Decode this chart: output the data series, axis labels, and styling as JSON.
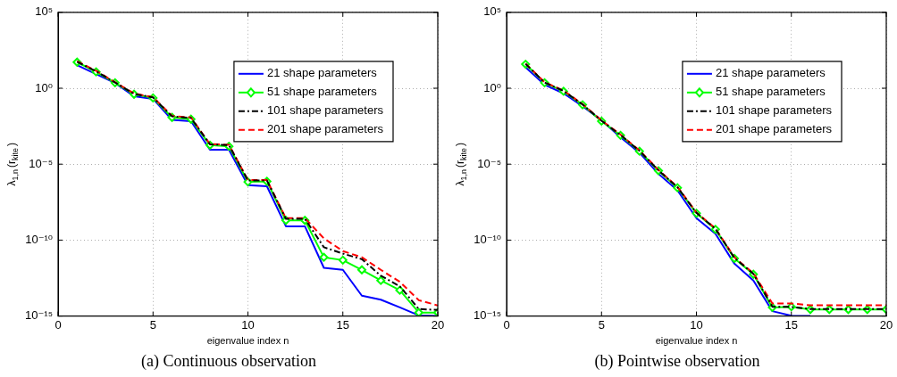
{
  "chart_data": [
    {
      "type": "line",
      "title": "(a) Continuous observation",
      "xlabel": "eigenvalue index n",
      "ylabel": "λ$_{1,n}$(r$_{kite}$)",
      "x": [
        1,
        2,
        3,
        4,
        5,
        6,
        7,
        8,
        9,
        10,
        11,
        12,
        13,
        14,
        15,
        16,
        17,
        18,
        19,
        20
      ],
      "xlim": [
        0,
        20
      ],
      "xticks": [
        0,
        5,
        10,
        15,
        20
      ],
      "log": "y",
      "ylim": [
        1e-15,
        100000.0
      ],
      "yticks": [
        {
          "value": 100000.0,
          "label": "10⁵"
        },
        {
          "value": 1,
          "label": "10⁰"
        },
        {
          "value": 1e-05,
          "label": "10⁻⁵"
        },
        {
          "value": 1e-10,
          "label": "10⁻¹⁰"
        },
        {
          "value": 1e-15,
          "label": "10⁻¹⁵"
        }
      ],
      "grid": true,
      "legend": "top right",
      "series": [
        {
          "name": "21 shape parameters",
          "color": "#0000ff",
          "line_style": "solid",
          "marker": "none",
          "values": [
            33,
            8.5,
            2.2,
            0.3,
            0.2,
            0.0083,
            0.0068,
            8.9e-05,
            8.9e-05,
            4.2e-07,
            3.5e-07,
            8.1e-10,
            8.1e-10,
            1.5e-12,
            1.1e-12,
            2.2e-14,
            1.2e-14,
            3.7e-15,
            1.1e-15,
            1e-15
          ]
        },
        {
          "name": "51 shape parameters",
          "color": "#00ff00",
          "line_style": "solid",
          "marker": "diamond",
          "values": [
            52,
            12,
            2.3,
            0.4,
            0.23,
            0.012,
            0.0091,
            0.00018,
            0.00015,
            6.8e-07,
            7.4e-07,
            2e-09,
            2e-09,
            7.4e-12,
            4.8e-12,
            1.1e-12,
            2.2e-13,
            5e-14,
            1.7e-15,
            1.7e-15
          ]
        },
        {
          "name": "101 shape parameters",
          "color": "#000000",
          "line_style": "dashdot",
          "marker": "none",
          "values": [
            55,
            13,
            2.4,
            0.42,
            0.25,
            0.014,
            0.011,
            0.0002,
            0.00018,
            8.5e-07,
            8.5e-07,
            2.5e-09,
            2.5e-09,
            3.4e-11,
            1.3e-11,
            5.5e-12,
            4.5e-13,
            9.1e-14,
            2.9e-15,
            2.5e-15
          ]
        },
        {
          "name": "201 shape parameters",
          "color": "#ff0000",
          "line_style": "dashed",
          "marker": "none",
          "values": [
            60,
            14,
            2.5,
            0.45,
            0.26,
            0.015,
            0.012,
            0.00021,
            0.00019,
            9e-07,
            9e-07,
            2.8e-09,
            2.8e-09,
            1.3e-10,
            1.9e-11,
            7.4e-12,
            1.1e-12,
            1.8e-13,
            1.1e-14,
            5e-15
          ]
        }
      ]
    },
    {
      "type": "line",
      "title": "(b) Pointwise observation",
      "xlabel": "eigenvalue index n",
      "ylabel": "λ$_{1,n}$(r$_{kite}$)",
      "x": [
        1,
        2,
        3,
        4,
        5,
        6,
        7,
        8,
        9,
        10,
        11,
        12,
        13,
        14,
        15,
        16,
        17,
        18,
        19,
        20
      ],
      "xlim": [
        0,
        20
      ],
      "xticks": [
        0,
        5,
        10,
        15,
        20
      ],
      "log": "y",
      "ylim": [
        1e-15,
        100000.0
      ],
      "yticks": [
        {
          "value": 100000.0,
          "label": "10⁵"
        },
        {
          "value": 1,
          "label": "10⁰"
        },
        {
          "value": 1e-05,
          "label": "10⁻⁵"
        },
        {
          "value": 1e-10,
          "label": "10⁻¹⁰"
        },
        {
          "value": 1e-15,
          "label": "10⁻¹⁵"
        }
      ],
      "grid": true,
      "legend": "top right",
      "series": [
        {
          "name": "21 shape parameters",
          "color": "#0000ff",
          "line_style": "solid",
          "marker": "none",
          "values": [
            24,
            1.7,
            0.46,
            0.065,
            0.0078,
            0.0006,
            5.6e-05,
            2.3e-06,
            1.9e-07,
            2.8e-09,
            2.6e-10,
            2.8e-12,
            2.2e-13,
            2.1e-15,
            1.05e-15,
            1e-15,
            null,
            null,
            null,
            null
          ]
        },
        {
          "name": "51 shape parameters",
          "color": "#00ff00",
          "line_style": "solid",
          "marker": "diamond",
          "values": [
            38,
            2.3,
            0.63,
            0.081,
            0.0068,
            0.00079,
            7.1e-05,
            3.7e-06,
            2.8e-07,
            5.8e-09,
            5.1e-10,
            6.2e-12,
            5.6e-13,
            3.7e-15,
            4.1e-15,
            2.7e-15,
            2.7e-15,
            2.7e-15,
            2.7e-15,
            2.7e-15
          ]
        },
        {
          "name": "101 shape parameters",
          "color": "#000000",
          "line_style": "dashdot",
          "marker": "none",
          "values": [
            40,
            2.4,
            0.66,
            0.085,
            0.0072,
            0.00083,
            7.5e-05,
            3.9e-06,
            3e-07,
            6.2e-09,
            5.5e-10,
            6.8e-12,
            6e-13,
            4.1e-15,
            4e-15,
            2.9e-15,
            2.9e-15,
            2.9e-15,
            2.9e-15,
            2.9e-15
          ]
        },
        {
          "name": "201 shape parameters",
          "color": "#ff0000",
          "line_style": "dashed",
          "marker": "none",
          "values": [
            42,
            2.5,
            0.7,
            0.09,
            0.0076,
            0.00088,
            8e-05,
            4.2e-06,
            3.2e-07,
            6.6e-09,
            5.9e-10,
            7.4e-12,
            6.6e-13,
            6.8e-15,
            6.8e-15,
            5.1e-15,
            5.1e-15,
            5.1e-15,
            5.1e-15,
            5.1e-15
          ]
        }
      ]
    }
  ]
}
